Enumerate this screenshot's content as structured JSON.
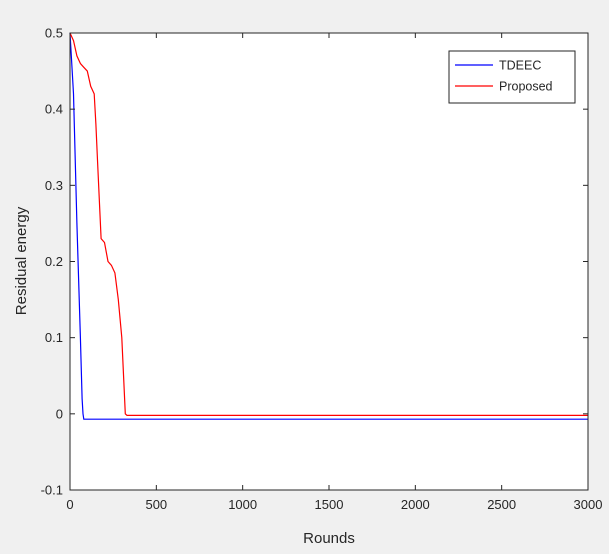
{
  "chart_data": {
    "type": "line",
    "title": "",
    "xlabel": "Rounds",
    "ylabel": "Residual energy",
    "xlim": [
      0,
      3000
    ],
    "ylim": [
      -0.1,
      0.5
    ],
    "xticks": [
      0,
      500,
      1000,
      1500,
      2000,
      2500,
      3000
    ],
    "yticks": [
      -0.1,
      0,
      0.1,
      0.2,
      0.3,
      0.4,
      0.5
    ],
    "xtick_labels": [
      "0",
      "500",
      "1000",
      "1500",
      "2000",
      "2500",
      "3000"
    ],
    "ytick_labels": [
      "-0.1",
      "0",
      "0.1",
      "0.2",
      "0.3",
      "0.4",
      "0.5"
    ],
    "grid": false,
    "legend_position": "top-right",
    "series": [
      {
        "name": "TDEEC",
        "color": "#0000ff",
        "x": [
          0,
          20,
          40,
          60,
          70,
          75,
          80,
          3000
        ],
        "y": [
          0.5,
          0.42,
          0.25,
          0.1,
          0.02,
          0.0,
          -0.007,
          -0.007
        ]
      },
      {
        "name": "Proposed",
        "color": "#ff0000",
        "x": [
          0,
          20,
          40,
          60,
          80,
          100,
          120,
          140,
          150,
          160,
          180,
          200,
          220,
          240,
          260,
          280,
          300,
          320,
          330,
          340,
          3000
        ],
        "y": [
          0.5,
          0.49,
          0.47,
          0.46,
          0.455,
          0.45,
          0.43,
          0.42,
          0.38,
          0.33,
          0.23,
          0.225,
          0.2,
          0.195,
          0.185,
          0.15,
          0.1,
          0.0,
          -0.002,
          -0.002,
          -0.002
        ]
      }
    ]
  }
}
